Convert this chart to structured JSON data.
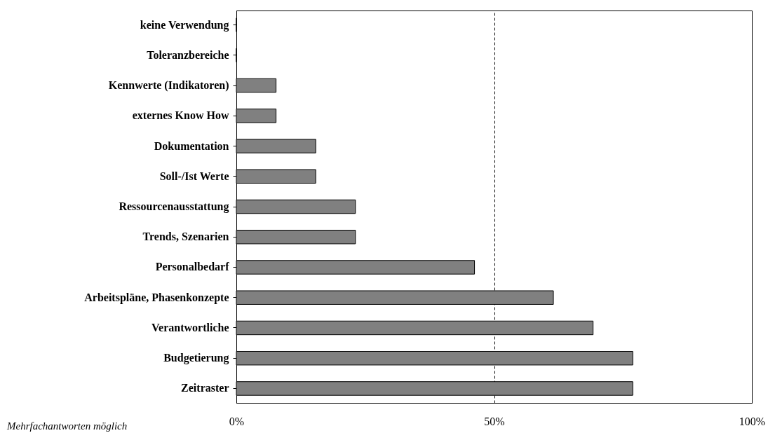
{
  "chart_data": {
    "type": "bar",
    "orientation": "horizontal",
    "categories": [
      "keine Verwendung",
      "Toleranzbereiche",
      "Kennwerte (Indikatoren)",
      "externes Know How",
      "Dokumentation",
      "Soll-/Ist Werte",
      "Ressourcenausstattung",
      "Trends, Szenarien",
      "Personalbedarf",
      "Arbeitspläne, Phasenkonzepte",
      "Verantwortliche",
      "Budgetierung",
      "Zeitraster"
    ],
    "values": [
      0,
      0,
      7.7,
      7.7,
      15.4,
      15.4,
      23.1,
      23.1,
      46.2,
      61.5,
      69.2,
      76.9,
      76.9
    ],
    "color": "#808080",
    "xlim": [
      0,
      100
    ],
    "xticks": [
      {
        "value": 0,
        "label": "0%"
      },
      {
        "value": 50,
        "label": "50%"
      },
      {
        "value": 100,
        "label": "100%"
      }
    ],
    "grid": "x",
    "line_style": "dashed",
    "annotations": [
      "Mehrfachantworten möglich"
    ]
  }
}
